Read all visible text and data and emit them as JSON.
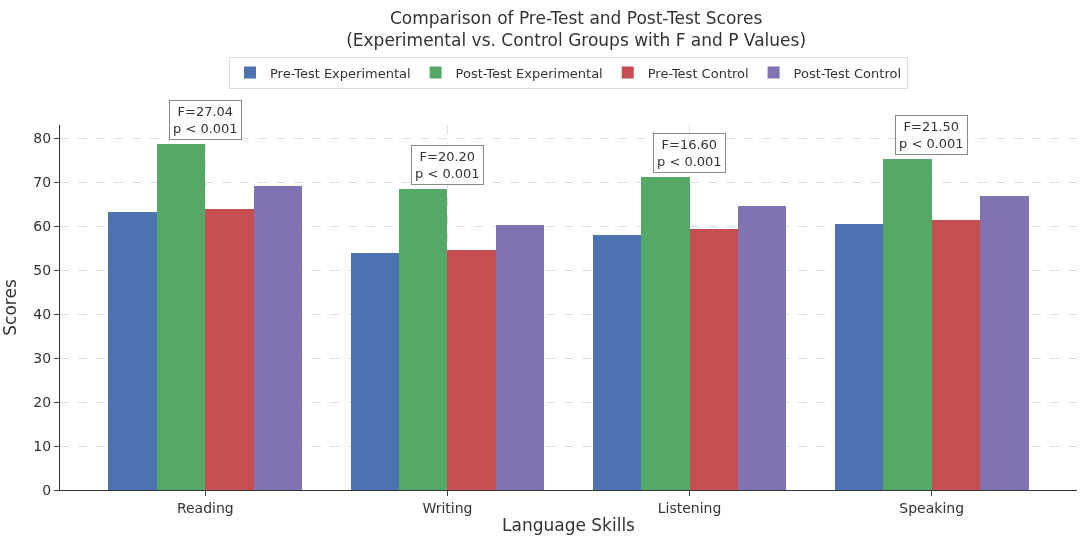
{
  "chart_data": {
    "type": "bar",
    "title": "Comparison of Pre-Test and Post-Test Scores\n(Experimental vs. Control Groups with F and P Values)",
    "xlabel": "Language Skills",
    "ylabel": "Scores",
    "categories": [
      "Reading",
      "Writing",
      "Listening",
      "Speaking"
    ],
    "series": [
      {
        "name": "Pre-Test Experimental",
        "color": "#4c72b0",
        "values": [
          63.2,
          53.9,
          58.0,
          60.6
        ]
      },
      {
        "name": "Post-Test Experimental",
        "color": "#55a868",
        "values": [
          78.7,
          68.4,
          71.2,
          75.2
        ]
      },
      {
        "name": "Pre-Test Control",
        "color": "#c44e52",
        "values": [
          63.8,
          54.5,
          59.3,
          61.4
        ]
      },
      {
        "name": "Post-Test Control",
        "color": "#8172b2",
        "values": [
          69.2,
          60.2,
          64.5,
          66.8
        ]
      }
    ],
    "annotations": [
      {
        "text": "F=27.04\np < 0.001",
        "x": "Reading",
        "y": 78.7
      },
      {
        "text": "F=20.20\np < 0.001",
        "x": "Writing",
        "y": 68.4
      },
      {
        "text": "F=16.60\np < 0.001",
        "x": "Listening",
        "y": 71.2
      },
      {
        "text": "F=21.50\np < 0.001",
        "x": "Speaking",
        "y": 75.2
      }
    ],
    "ylim": [
      0,
      83
    ],
    "yticks": [
      0,
      10,
      20,
      30,
      40,
      50,
      60,
      70,
      80
    ],
    "grid": true,
    "legend": "top"
  }
}
